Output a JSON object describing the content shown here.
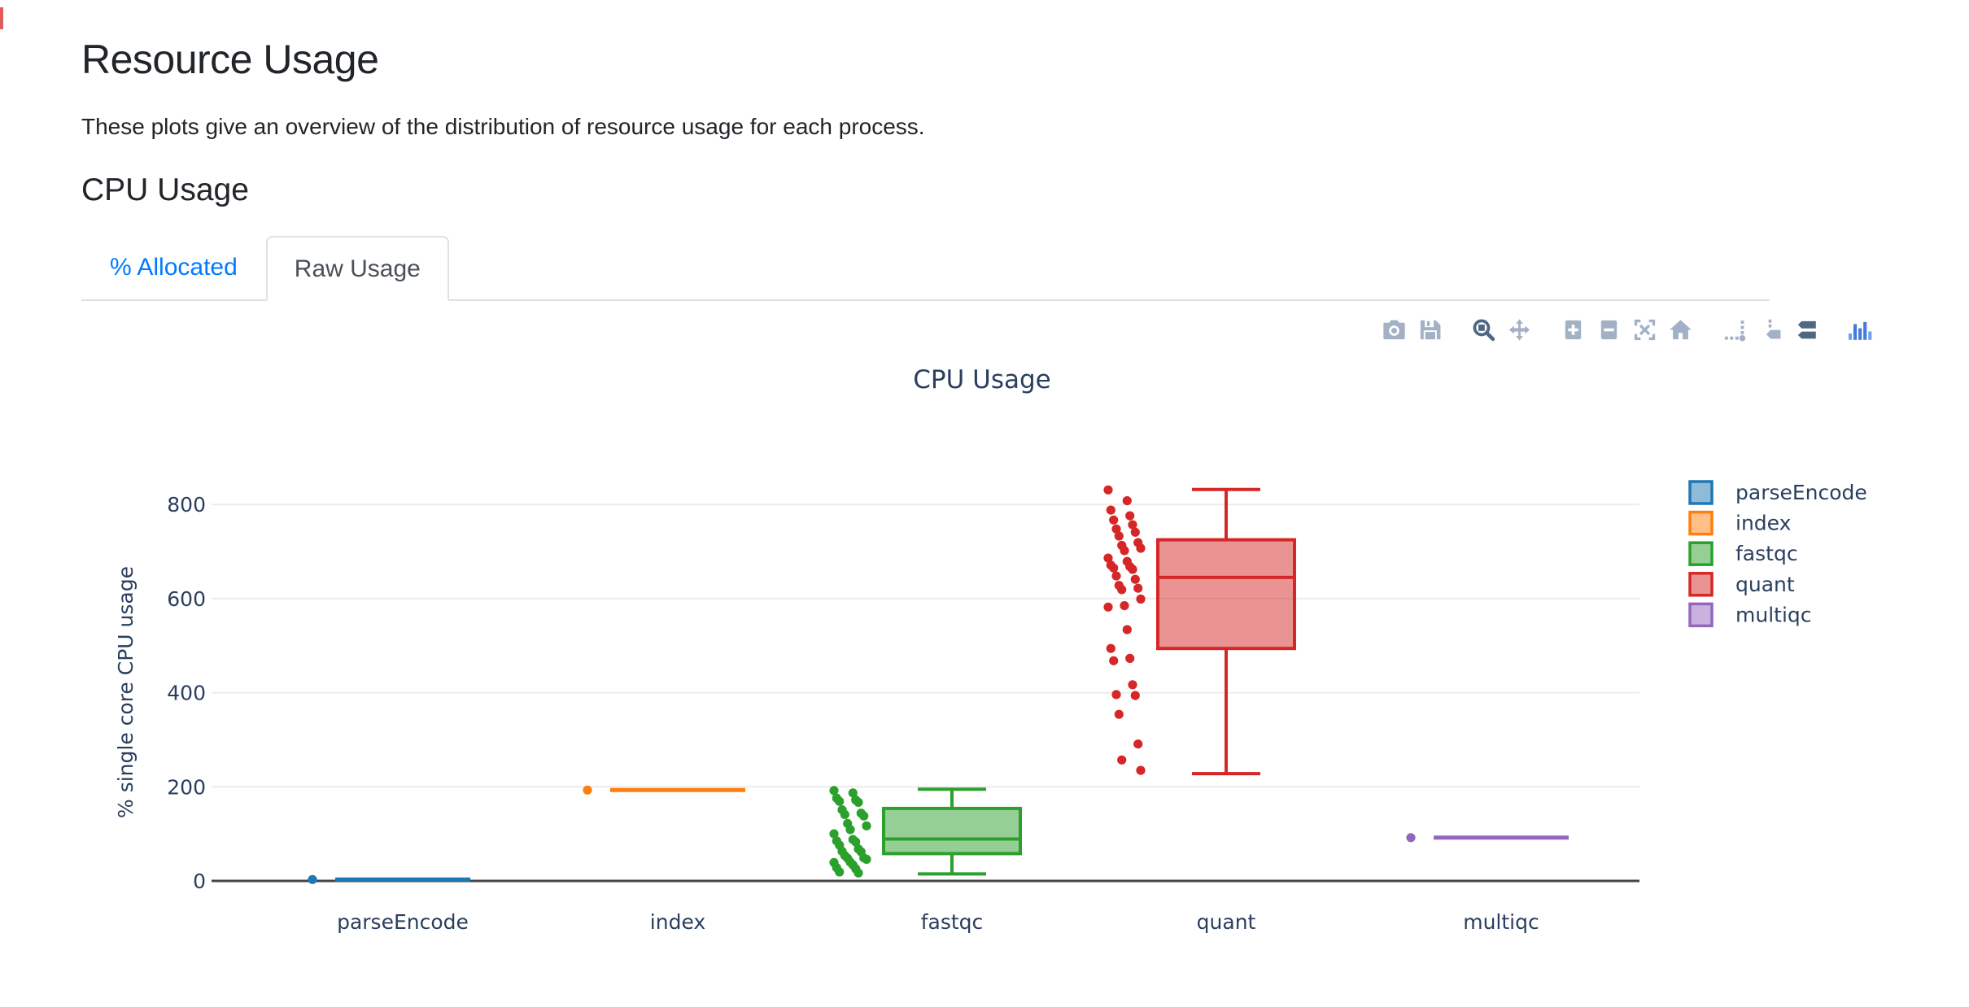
{
  "page": {
    "title": "Resource Usage",
    "subtitle": "These plots give an overview of the distribution of resource usage for each process.",
    "section_heading": "CPU Usage"
  },
  "tabs": [
    {
      "label": "% Allocated",
      "active": false
    },
    {
      "label": "Raw Usage",
      "active": true
    }
  ],
  "modebar": [
    {
      "name": "camera-icon",
      "label": "Download plot as a png",
      "state": "light",
      "group": 0
    },
    {
      "name": "save-icon",
      "label": "Edit in Chart Studio",
      "state": "light",
      "group": 0
    },
    {
      "name": "zoom-icon",
      "label": "Zoom",
      "state": "dark",
      "group": 1
    },
    {
      "name": "pan-icon",
      "label": "Pan",
      "state": "light",
      "group": 1
    },
    {
      "name": "zoom-in-icon",
      "label": "Zoom in",
      "state": "light",
      "group": 2
    },
    {
      "name": "zoom-out-icon",
      "label": "Zoom out",
      "state": "light",
      "group": 2
    },
    {
      "name": "autoscale-icon",
      "label": "Autoscale",
      "state": "light",
      "group": 2
    },
    {
      "name": "reset-axes-icon",
      "label": "Reset axes",
      "state": "light",
      "group": 2
    },
    {
      "name": "spikelines-icon",
      "label": "Toggle Spike Lines",
      "state": "light",
      "group": 3
    },
    {
      "name": "hover-closest-icon",
      "label": "Show closest data on hover",
      "state": "light",
      "group": 3
    },
    {
      "name": "hover-compare-icon",
      "label": "Compare data on hover",
      "state": "dark",
      "group": 3
    },
    {
      "name": "plotly-logo-icon",
      "label": "Produced with Plotly",
      "state": "logo",
      "group": 4
    }
  ],
  "theme": {
    "link_color": "#007bff",
    "border_color": "#dee2e6",
    "chart_text_color": "#2a3f5f",
    "grid_color": "#ececec",
    "zeroline_color": "#444444",
    "plotly_logo_blue": "#447adb"
  },
  "chart_data": {
    "type": "box",
    "title": "CPU Usage",
    "xlabel": "",
    "ylabel": "% single core CPU usage",
    "categories": [
      "parseEncode",
      "index",
      "fastqc",
      "quant",
      "multiqc"
    ],
    "yticks": [
      0,
      200,
      400,
      600,
      800
    ],
    "ylim": [
      -45,
      880
    ],
    "grid": true,
    "legend_position": "right",
    "boxpoints": "all",
    "series": [
      {
        "name": "parseEncode",
        "color": "#1f77b4",
        "points": [
          3
        ],
        "box": {
          "low": 3,
          "q1": 3,
          "median": 3,
          "q3": 3,
          "high": 3
        }
      },
      {
        "name": "index",
        "color": "#ff7f0e",
        "points": [
          193
        ],
        "box": {
          "low": 193,
          "q1": 193,
          "median": 193,
          "q3": 193,
          "high": 193
        }
      },
      {
        "name": "fastqc",
        "color": "#2ca02c",
        "points": [
          192,
          187,
          176,
          172,
          169,
          167,
          151,
          144,
          141,
          138,
          122,
          117,
          109,
          100,
          88,
          85,
          83,
          76,
          68,
          63,
          62,
          54,
          49,
          48,
          46,
          40,
          39,
          34,
          28,
          26,
          19,
          17
        ],
        "box": {
          "low": 15,
          "q1": 58,
          "median": 89,
          "q3": 154,
          "high": 195
        }
      },
      {
        "name": "quant",
        "color": "#d62728",
        "points": [
          831,
          808,
          788,
          776,
          767,
          757,
          748,
          741,
          733,
          719,
          713,
          707,
          702,
          686,
          679,
          671,
          668,
          665,
          662,
          648,
          641,
          628,
          622,
          619,
          599,
          585,
          582,
          534,
          494,
          473,
          468,
          417,
          396,
          394,
          354,
          291,
          257,
          235
        ],
        "box": {
          "low": 228,
          "q1": 494,
          "median": 645,
          "q3": 725,
          "high": 832
        }
      },
      {
        "name": "multiqc",
        "color": "#9467bd",
        "points": [
          92
        ],
        "box": {
          "low": 92,
          "q1": 92,
          "median": 92,
          "q3": 92,
          "high": 92
        }
      }
    ]
  }
}
